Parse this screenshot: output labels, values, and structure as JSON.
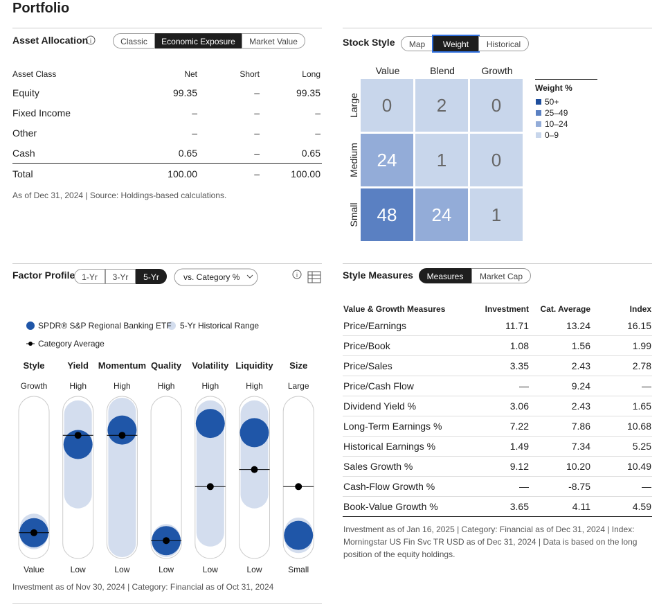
{
  "header": {
    "title": "Portfolio"
  },
  "asset_allocation": {
    "title": "Asset Allocation",
    "tabs": [
      "Classic",
      "Economic Exposure",
      "Market Value"
    ],
    "active_tab": 1,
    "columns": [
      "Asset Class",
      "Net",
      "Short",
      "Long"
    ],
    "rows": [
      [
        "Equity",
        "99.35",
        "–",
        "99.35"
      ],
      [
        "Fixed Income",
        "–",
        "–",
        "–"
      ],
      [
        "Other",
        "–",
        "–",
        "–"
      ],
      [
        "Cash",
        "0.65",
        "–",
        "0.65"
      ]
    ],
    "total": [
      "Total",
      "100.00",
      "–",
      "100.00"
    ],
    "note": "As of Dec 31, 2024 | Source: Holdings-based calculations."
  },
  "stock_style": {
    "title": "Stock Style",
    "tabs": [
      "Map",
      "Weight",
      "Historical"
    ],
    "active_tab": 1,
    "columns": [
      "Value",
      "Blend",
      "Growth"
    ],
    "rows": [
      "Large",
      "Medium",
      "Small"
    ],
    "cells": [
      [
        0,
        2,
        0
      ],
      [
        24,
        1,
        0
      ],
      [
        48,
        24,
        1
      ]
    ],
    "cell_colors": [
      [
        "#c8d6eb",
        "#c8d6eb",
        "#c8d6eb"
      ],
      [
        "#93acd8",
        "#c8d6eb",
        "#c8d6eb"
      ],
      [
        "#5a80c2",
        "#93acd8",
        "#c8d6eb"
      ]
    ],
    "legend_title": "Weight %",
    "legend": [
      {
        "label": "50+",
        "color": "#1f4e9c"
      },
      {
        "label": "25–49",
        "color": "#5a80c2"
      },
      {
        "label": "10–24",
        "color": "#93acd8"
      },
      {
        "label": "0–9",
        "color": "#c8d6eb"
      }
    ]
  },
  "factor_profile": {
    "title": "Factor Profile",
    "tabs": [
      "1-Yr",
      "3-Yr",
      "5-Yr"
    ],
    "active_tab": 2,
    "dropdown": "vs. Category %",
    "legend": {
      "fund": "SPDR® S&P Regional Banking ETF",
      "range": "5-Yr Historical Range",
      "category": "Category Average"
    },
    "colors": {
      "fund": "#1f56a8",
      "range": "#d3ddee",
      "category": "#000000"
    },
    "factors": [
      {
        "name": "Style",
        "high": "Growth",
        "low": "Value",
        "range": [
          6,
          12
        ],
        "fund": 8,
        "category": 8
      },
      {
        "name": "Yield",
        "high": "High",
        "low": "Low",
        "range": [
          37,
          98
        ],
        "fund": 75,
        "category": 82
      },
      {
        "name": "Momentum",
        "high": "High",
        "low": "Low",
        "range": [
          0,
          100
        ],
        "fund": 86,
        "category": 82
      },
      {
        "name": "Quality",
        "high": "High",
        "low": "Low",
        "range": [
          0,
          4
        ],
        "fund": 2,
        "category": 2
      },
      {
        "name": "Volatility",
        "high": "High",
        "low": "Low",
        "range": [
          8,
          98
        ],
        "fund": 91,
        "category": 43
      },
      {
        "name": "Liquidity",
        "high": "High",
        "low": "Low",
        "range": [
          37,
          98
        ],
        "fund": 84,
        "category": 56
      },
      {
        "name": "Size",
        "high": "Large",
        "low": "Small",
        "range": [
          3,
          9
        ],
        "fund": 6,
        "category": 43
      }
    ],
    "note": "Investment as of Nov 30, 2024 | Category: Financial as of Oct 31, 2024"
  },
  "style_measures": {
    "title": "Style Measures",
    "tabs": [
      "Measures",
      "Market Cap"
    ],
    "active_tab": 0,
    "columns": [
      "Value & Growth Measures",
      "Investment",
      "Cat. Average",
      "Index"
    ],
    "rows": [
      [
        "Price/Earnings",
        "11.71",
        "13.24",
        "16.15"
      ],
      [
        "Price/Book",
        "1.08",
        "1.56",
        "1.99"
      ],
      [
        "Price/Sales",
        "3.35",
        "2.43",
        "2.78"
      ],
      [
        "Price/Cash Flow",
        "—",
        "9.24",
        "—"
      ],
      [
        "Dividend Yield %",
        "3.06",
        "2.43",
        "1.65"
      ],
      [
        "Long-Term Earnings %",
        "7.22",
        "7.86",
        "10.68"
      ],
      [
        "Historical Earnings %",
        "1.49",
        "7.34",
        "5.25"
      ],
      [
        "Sales Growth %",
        "9.12",
        "10.20",
        "10.49"
      ],
      [
        "Cash-Flow Growth %",
        "—",
        "-8.75",
        "—"
      ],
      [
        "Book-Value Growth %",
        "3.65",
        "4.11",
        "4.59"
      ]
    ],
    "note": "Investment as of Jan 16, 2025 | Category: Financial as of Dec 31, 2024 | Index: Morningstar US Fin Svc TR USD as of Dec 31, 2024 | Data is based on the long position of the equity holdings."
  }
}
